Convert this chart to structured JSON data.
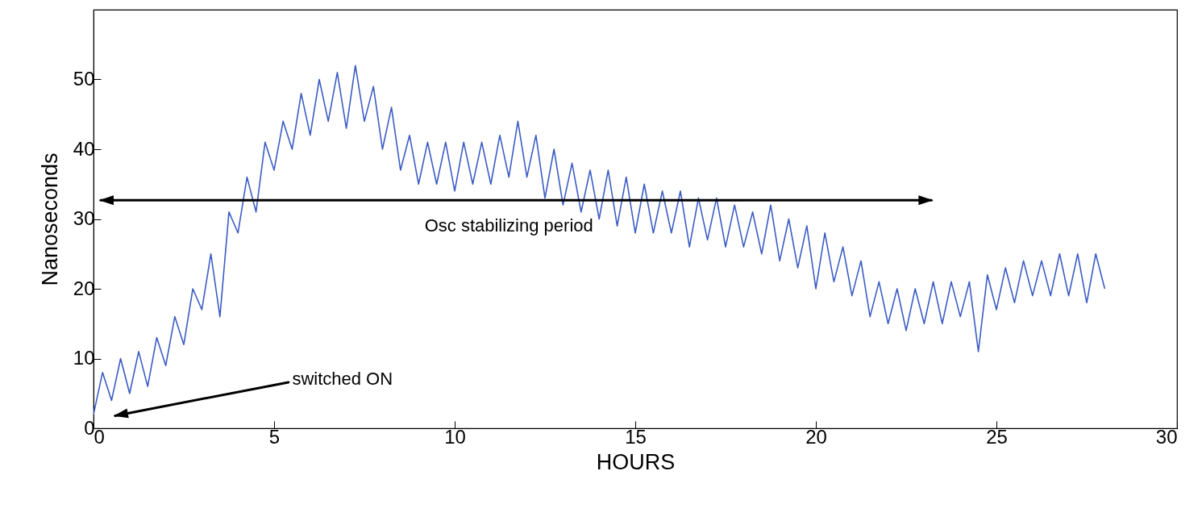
{
  "chart_data": {
    "type": "line",
    "xlabel": "HOURS",
    "ylabel": "Nanoseconds",
    "xlim": [
      0,
      30
    ],
    "xticks": [
      0,
      5,
      10,
      15,
      20,
      25,
      30
    ],
    "ylim": [
      0,
      60
    ],
    "yticks": [
      0,
      10,
      20,
      30,
      40,
      50
    ],
    "grid": false,
    "marker": "none",
    "line_style": "solid",
    "annotations": [
      "Osc stabilizing period",
      "switched ON"
    ],
    "x": [
      0,
      0.25,
      0.5,
      0.75,
      1,
      1.25,
      1.5,
      1.75,
      2,
      2.25,
      2.5,
      2.75,
      3,
      3.25,
      3.5,
      3.75,
      4,
      4.25,
      4.5,
      4.75,
      5,
      5.25,
      5.5,
      5.75,
      6,
      6.25,
      6.5,
      6.75,
      7,
      7.25,
      7.5,
      7.75,
      8,
      8.25,
      8.5,
      8.75,
      9,
      9.25,
      9.5,
      9.75,
      10,
      10.25,
      10.5,
      10.75,
      11,
      11.25,
      11.5,
      11.75,
      12,
      12.25,
      12.5,
      12.75,
      13,
      13.25,
      13.5,
      13.75,
      14,
      14.25,
      14.5,
      14.75,
      15,
      15.25,
      15.5,
      15.75,
      16,
      16.25,
      16.5,
      16.75,
      17,
      17.25,
      17.5,
      17.75,
      18,
      18.25,
      18.5,
      18.75,
      19,
      19.25,
      19.5,
      19.75,
      20,
      20.25,
      20.5,
      20.75,
      21,
      21.25,
      21.5,
      21.75,
      22,
      22.25,
      22.5,
      22.75,
      23,
      23.25,
      23.5,
      23.75,
      24,
      24.25,
      24.5,
      24.75,
      25,
      25.25,
      25.5,
      25.75,
      26,
      26.25,
      26.5,
      26.75,
      27,
      27.25,
      27.5,
      27.75,
      28
    ],
    "series": [
      {
        "color": "#3b5cc4",
        "values": [
          2,
          8,
          4,
          10,
          5,
          11,
          6,
          13,
          9,
          16,
          12,
          20,
          17,
          25,
          16,
          31,
          28,
          36,
          31,
          41,
          37,
          44,
          40,
          48,
          42,
          50,
          44,
          51,
          43,
          52,
          44,
          49,
          40,
          46,
          37,
          42,
          35,
          41,
          35,
          41,
          34,
          41,
          35,
          41,
          35,
          42,
          36,
          44,
          36,
          42,
          33,
          40,
          32,
          38,
          31,
          37,
          30,
          37,
          29,
          36,
          28,
          35,
          28,
          34,
          28,
          34,
          26,
          33,
          27,
          33,
          26,
          32,
          26,
          31,
          25,
          32,
          24,
          30,
          23,
          29,
          20,
          28,
          21,
          26,
          19,
          24,
          16,
          21,
          15,
          20,
          14,
          20,
          15,
          21,
          15,
          21,
          16,
          21,
          11,
          22,
          17,
          23,
          18,
          24,
          19,
          24,
          19,
          25,
          19,
          25,
          18,
          25,
          20
        ]
      }
    ]
  }
}
